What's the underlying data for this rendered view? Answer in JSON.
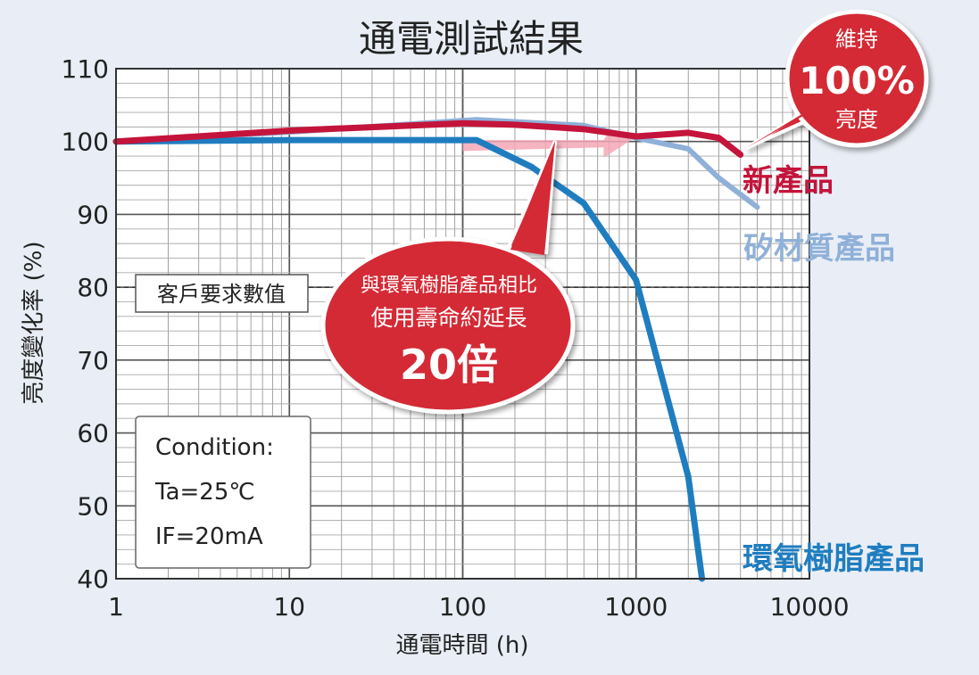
{
  "chart_data": {
    "type": "line",
    "title": "通電測試結果",
    "xlabel": "通電時間 (h)",
    "ylabel": "亮度變化率 (%)",
    "x_scale": "log",
    "xlim": [
      1,
      10000
    ],
    "ylim": [
      40,
      110
    ],
    "x_ticks": [
      "1",
      "10",
      "100",
      "1000",
      "10000"
    ],
    "y_ticks": [
      "40",
      "50",
      "60",
      "70",
      "80",
      "90",
      "100",
      "110"
    ],
    "grid": true,
    "series": [
      {
        "name": "新產品",
        "color": "#c4143b",
        "x": [
          1,
          10,
          100,
          200,
          500,
          1000,
          2000,
          3000,
          4000
        ],
        "y": [
          100,
          101.5,
          102.5,
          102.3,
          101.7,
          100.7,
          101.2,
          100.5,
          98.2
        ]
      },
      {
        "name": "矽材質產品",
        "color": "#8fb0d8",
        "x": [
          1,
          10,
          120,
          500,
          1000,
          2000,
          3000,
          5000
        ],
        "y": [
          100,
          101.3,
          103,
          102.2,
          100.5,
          99,
          95,
          91
        ]
      },
      {
        "name": "環氧樹脂產品",
        "color": "#1f7dbf",
        "x": [
          1,
          10,
          100,
          120,
          250,
          500,
          1000,
          2000,
          2400
        ],
        "y": [
          100,
          100.2,
          100.2,
          100.2,
          96.5,
          91.5,
          81,
          54,
          40
        ]
      }
    ],
    "reference_line": {
      "label": "客戶要求數值",
      "y": 80
    },
    "annotations": {
      "condition": [
        "Condition:",
        "Ta=25℃",
        "IF=20mA"
      ],
      "callout_red_small": "與環氧樹脂產品相比",
      "callout_red_mid": "使用壽命約延長",
      "callout_red_big": "20倍",
      "callout_100_top": "維持",
      "callout_100_mid": "100%",
      "callout_100_bottom": "亮度"
    }
  }
}
